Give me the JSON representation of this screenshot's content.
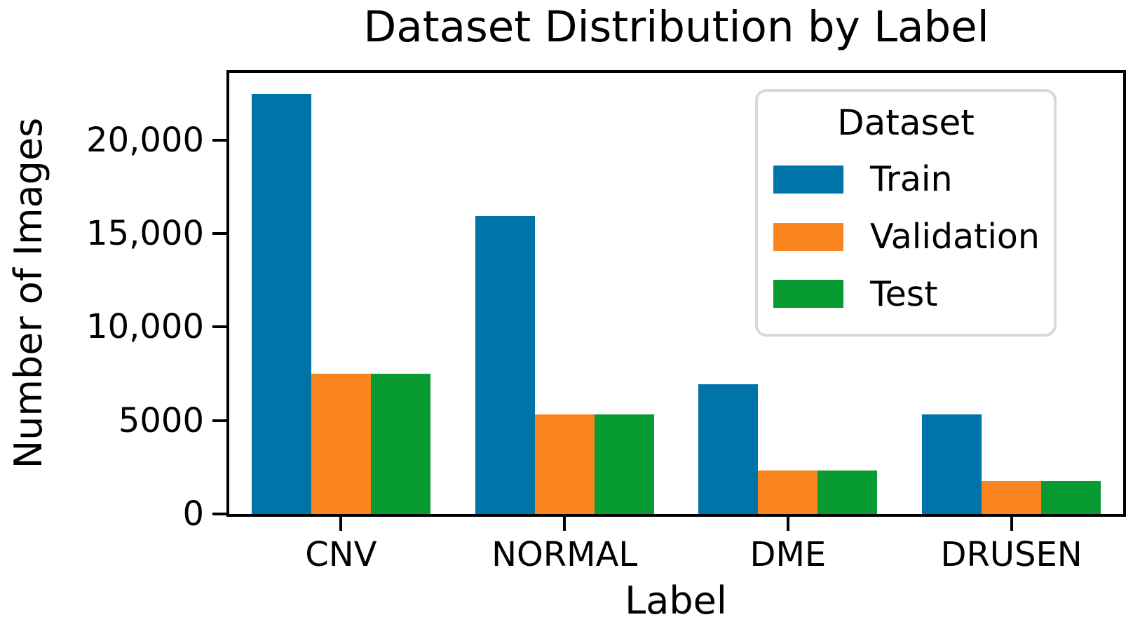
{
  "chart_data": {
    "type": "bar",
    "title": "Dataset Distribution by Label",
    "xlabel": "Label",
    "ylabel": "Number of Images",
    "categories": [
      "CNV",
      "NORMAL",
      "DME",
      "DRUSEN"
    ],
    "series": [
      {
        "name": "Train",
        "color": "#0074a8",
        "values": [
          22473,
          15939,
          6959,
          5320
        ]
      },
      {
        "name": "Validation",
        "color": "#fa8520",
        "values": [
          7491,
          5313,
          2320,
          1773
        ]
      },
      {
        "name": "Test",
        "color": "#089b31",
        "values": [
          7491,
          5313,
          2320,
          1773
        ]
      }
    ],
    "ylim": [
      0,
      23600
    ],
    "yticks": [
      {
        "value": 0,
        "label": "0"
      },
      {
        "value": 5000,
        "label": "5000"
      },
      {
        "value": 10000,
        "label": "10,000"
      },
      {
        "value": 15000,
        "label": "15,000"
      },
      {
        "value": 20000,
        "label": "20,000"
      }
    ],
    "legend": {
      "title": "Dataset",
      "position": "upper right"
    },
    "grid": false,
    "bar_group_width_ratio": 0.8,
    "colors": {
      "axis": "#000000",
      "legend_border": "#d9d9d9",
      "background": "#ffffff"
    }
  }
}
